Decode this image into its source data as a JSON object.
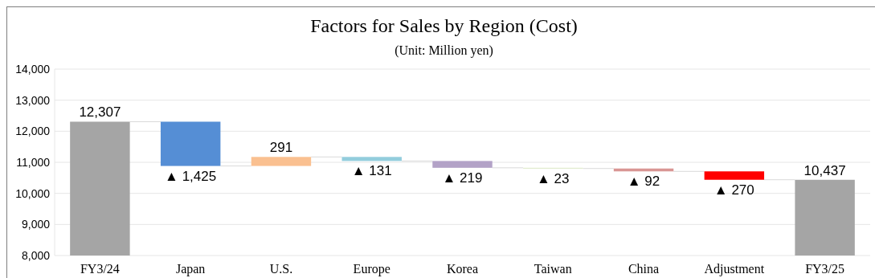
{
  "chart_data": {
    "type": "bar",
    "title": "Factors for Sales by Region (Cost)",
    "subtitle": "(Unit: Million yen)",
    "categories": [
      "FY3/24",
      "Japan",
      "U.S.",
      "Europe",
      "Korea",
      "Taiwan",
      "China",
      "Adjustment",
      "FY3/25"
    ],
    "values": [
      12307,
      -1425,
      291,
      -131,
      -219,
      -23,
      -92,
      -270,
      10437
    ],
    "base": [
      null,
      12307,
      10882,
      11173,
      11042,
      10823,
      10800,
      10708,
      null
    ],
    "colors": [
      "#a5a5a5",
      "#558ed5",
      "#fac090",
      "#93cddd",
      "#b3a2c7",
      "#d7e4bd",
      "#d99694",
      "#ff0000",
      "#a5a5a5"
    ],
    "value_labels": [
      "12,307",
      "▲ 1,425",
      "291",
      "▲ 131",
      "▲ 219",
      "▲ 23",
      "▲ 92",
      "▲ 270",
      "10,437"
    ],
    "ylim": [
      8000,
      14000
    ],
    "yticks": [
      {
        "value": 8000,
        "label": "8,000"
      },
      {
        "value": 9000,
        "label": "9,000"
      },
      {
        "value": 10000,
        "label": "10,000"
      },
      {
        "value": 11000,
        "label": "11,000"
      },
      {
        "value": 12000,
        "label": "12,000"
      },
      {
        "value": 13000,
        "label": "13,000"
      },
      {
        "value": 14000,
        "label": "14,000"
      }
    ],
    "grid": "y"
  }
}
